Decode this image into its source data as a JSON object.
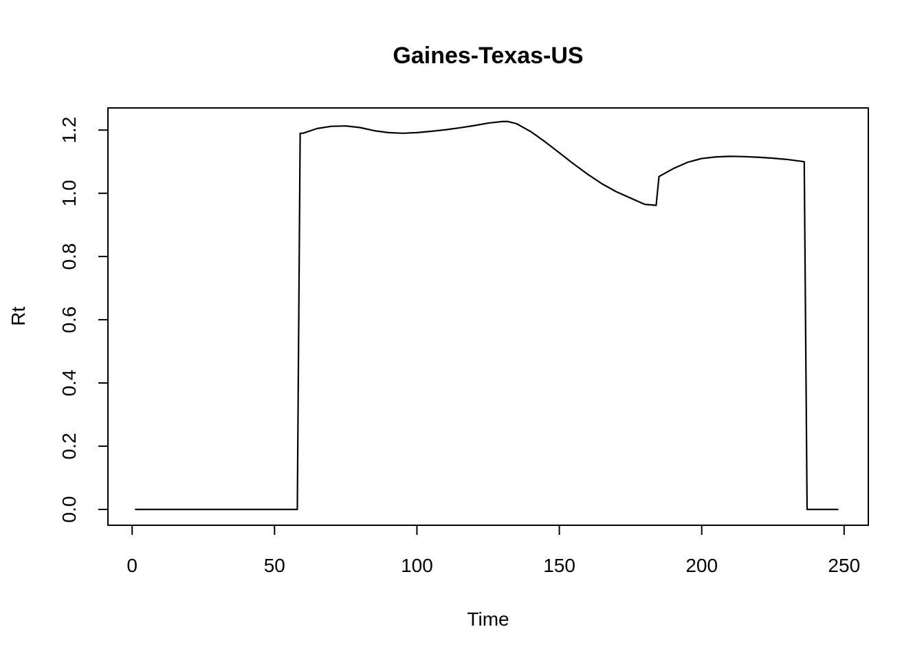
{
  "chart_data": {
    "type": "line",
    "title": "Gaines-Texas-US",
    "xlabel": "Time",
    "ylabel": "Rt",
    "xlim": [
      -8.5,
      258.5
    ],
    "ylim": [
      -0.05,
      1.27
    ],
    "x_ticks": [
      0,
      50,
      100,
      150,
      200,
      250
    ],
    "x_tick_labels": [
      "0",
      "50",
      "100",
      "150",
      "200",
      "250"
    ],
    "y_ticks": [
      0.0,
      0.2,
      0.4,
      0.6,
      0.8,
      1.0,
      1.2
    ],
    "y_tick_labels": [
      "0.0",
      "0.2",
      "0.4",
      "0.6",
      "0.8",
      "1.0",
      "1.2"
    ],
    "grid": false,
    "legend": "none",
    "line_color": "#000000",
    "series": [
      {
        "x": [
          1,
          10,
          20,
          30,
          40,
          50,
          58,
          59,
          60,
          65,
          70,
          75,
          80,
          85,
          90,
          95,
          100,
          105,
          110,
          115,
          120,
          125,
          130,
          132,
          135,
          140,
          145,
          150,
          155,
          160,
          165,
          170,
          175,
          180,
          184,
          185,
          190,
          195,
          200,
          205,
          210,
          215,
          220,
          225,
          230,
          236,
          237,
          240,
          245,
          248
        ],
        "y": [
          0,
          0,
          0,
          0,
          0,
          0,
          0,
          1.19,
          1.19,
          1.205,
          1.212,
          1.213,
          1.208,
          1.198,
          1.192,
          1.19,
          1.192,
          1.196,
          1.201,
          1.207,
          1.214,
          1.222,
          1.227,
          1.227,
          1.22,
          1.195,
          1.163,
          1.128,
          1.093,
          1.06,
          1.03,
          1.005,
          0.985,
          0.965,
          0.962,
          1.053,
          1.078,
          1.098,
          1.11,
          1.115,
          1.117,
          1.116,
          1.114,
          1.111,
          1.107,
          1.1,
          0,
          0,
          0,
          0
        ]
      }
    ]
  }
}
